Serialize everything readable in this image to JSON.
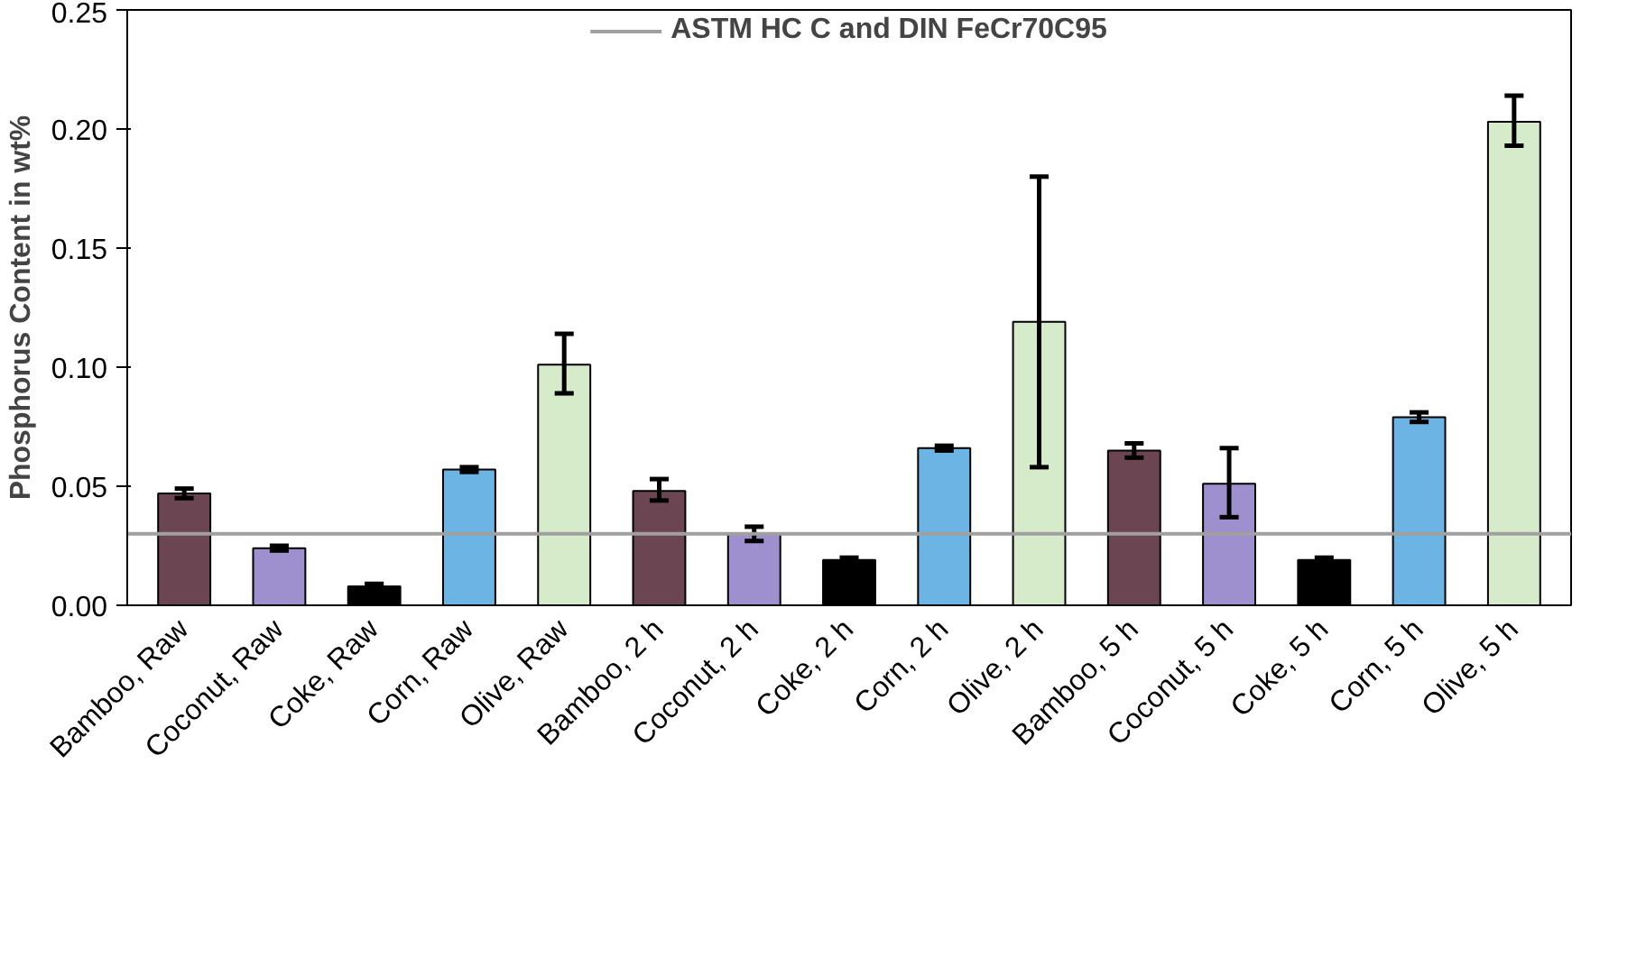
{
  "chart_data": {
    "type": "bar",
    "ylabel": "Phosphorus Content in wt%",
    "categories": [
      "Bamboo, Raw",
      "Coconut, Raw",
      "Coke, Raw",
      "Corn, Raw",
      "Olive, Raw",
      "Bamboo, 2 h",
      "Coconut, 2 h",
      "Coke, 2 h",
      "Corn, 2 h",
      "Olive, 2 h",
      "Bamboo, 5 h",
      "Coconut, 5 h",
      "Coke, 5 h",
      "Corn, 5 h",
      "Olive, 5 h"
    ],
    "values": [
      0.047,
      0.024,
      0.008,
      0.057,
      0.101,
      0.048,
      0.03,
      0.019,
      0.066,
      0.119,
      0.065,
      0.051,
      0.019,
      0.079,
      0.203
    ],
    "errors": [
      0.002,
      0.001,
      0.001,
      0.001,
      [
        0.089,
        0.114
      ],
      [
        0.044,
        0.053
      ],
      [
        0.027,
        0.033
      ],
      0.001,
      0.001,
      [
        0.058,
        0.18
      ],
      0.003,
      [
        0.037,
        0.066
      ],
      0.001,
      0.002,
      [
        0.193,
        0.214
      ]
    ],
    "colors": [
      "#6b4552",
      "#9e8fcf",
      "#000000",
      "#6cb4e4",
      "#d5ebc9",
      "#6b4552",
      "#9e8fcf",
      "#000000",
      "#6cb4e4",
      "#d5ebc9",
      "#6b4552",
      "#9e8fcf",
      "#000000",
      "#6cb4e4",
      "#d5ebc9"
    ],
    "ylim": [
      0,
      0.25
    ],
    "yticks": [
      {
        "value": 0,
        "label": "0.00"
      },
      {
        "value": 0.05,
        "label": "0.05"
      },
      {
        "value": 0.1,
        "label": "0.10"
      },
      {
        "value": 0.15,
        "label": "0.15"
      },
      {
        "value": 0.2,
        "label": "0.20"
      },
      {
        "value": 0.25,
        "label": "0.25"
      }
    ],
    "ref_lines": [
      {
        "axis": "y",
        "value": 0.03,
        "label": "ASTM HC C and DIN FeCr70C95",
        "color": "#a0a0a0"
      }
    ],
    "grid": false,
    "legend": "top"
  }
}
